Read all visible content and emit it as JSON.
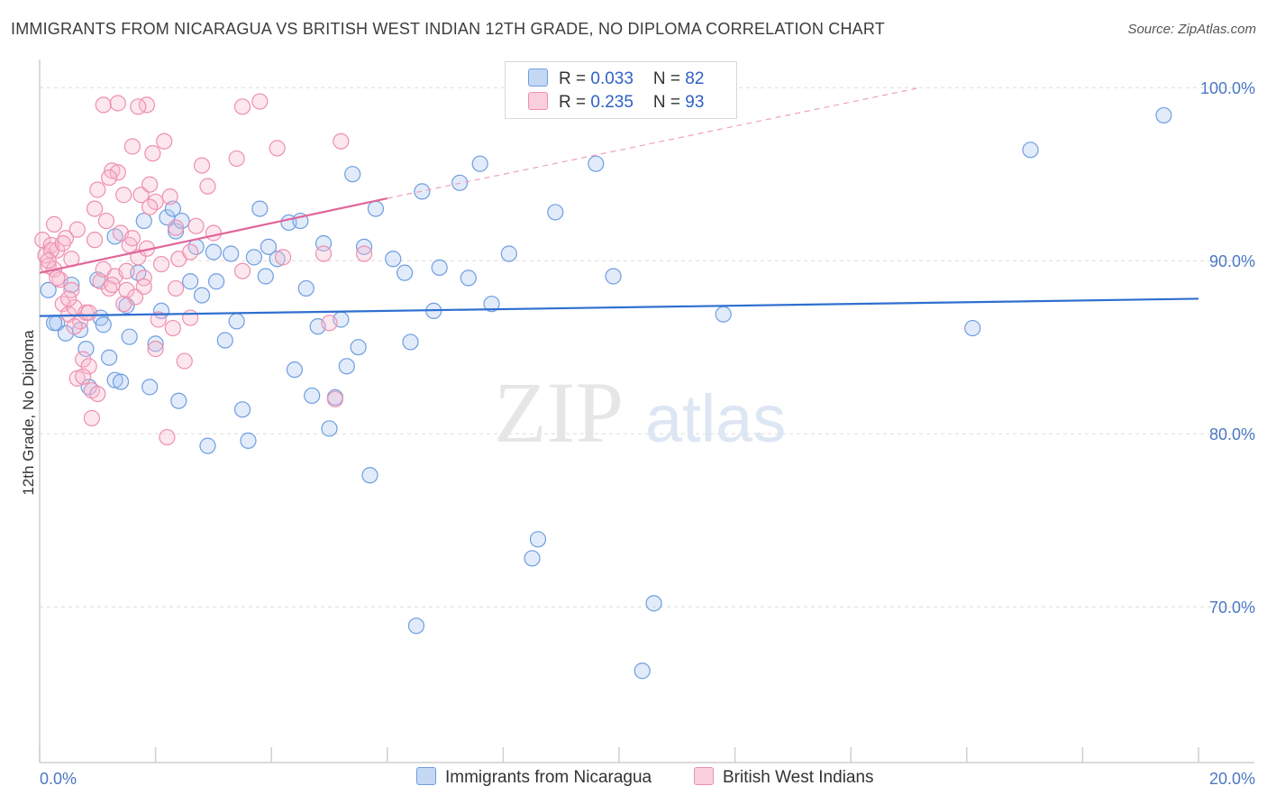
{
  "title": "IMMIGRANTS FROM NICARAGUA VS BRITISH WEST INDIAN 12TH GRADE, NO DIPLOMA CORRELATION CHART",
  "source": "Source: ZipAtlas.com",
  "watermark": {
    "zip": "ZIP",
    "atlas": "atlas"
  },
  "legend": {
    "series1": {
      "r_label": "R = ",
      "r_value": "0.033",
      "n_label": "N = ",
      "n_value": "82"
    },
    "series2": {
      "r_label": "R = ",
      "r_value": "0.235",
      "n_label": "N = ",
      "n_value": "93"
    }
  },
  "chart_data": {
    "type": "scatter",
    "title": "IMMIGRANTS FROM NICARAGUA VS BRITISH WEST INDIAN 12TH GRADE, NO DIPLOMA CORRELATION CHART",
    "xlabel": "",
    "ylabel": "12th Grade, No Diploma",
    "xlim": [
      0,
      20
    ],
    "ylim": [
      61,
      101
    ],
    "x_tick_labels": [
      "0.0%",
      "20.0%"
    ],
    "y_tick_labels": [
      "100.0%",
      "90.0%",
      "80.0%",
      "70.0%"
    ],
    "y_ticks": [
      100,
      90,
      80,
      70
    ],
    "grid": true,
    "legend_position": "top-center",
    "colors": {
      "blue": "#6f9ee0",
      "pink": "#ee8fb0",
      "blue_line": "#2f6fd0",
      "pink_line": "#e0669a"
    },
    "series": [
      {
        "name": "Immigrants from Nicaragua",
        "color": "#6f9ee0",
        "trend": {
          "x0": 0.0,
          "y0": 86.8,
          "x1": 20.0,
          "y1": 87.8
        },
        "points": [
          [
            0.15,
            88.3
          ],
          [
            0.3,
            86.4
          ],
          [
            0.45,
            85.8
          ],
          [
            0.55,
            88.6
          ],
          [
            0.7,
            86.0
          ],
          [
            0.8,
            84.9
          ],
          [
            0.85,
            82.7
          ],
          [
            1.0,
            88.9
          ],
          [
            1.05,
            86.7
          ],
          [
            1.1,
            86.3
          ],
          [
            1.2,
            84.4
          ],
          [
            1.3,
            83.1
          ],
          [
            1.4,
            83.0
          ],
          [
            1.5,
            87.4
          ],
          [
            1.55,
            85.6
          ],
          [
            1.7,
            89.3
          ],
          [
            1.8,
            92.3
          ],
          [
            1.9,
            82.7
          ],
          [
            2.0,
            85.2
          ],
          [
            2.1,
            87.1
          ],
          [
            2.2,
            92.5
          ],
          [
            2.3,
            93.0
          ],
          [
            2.35,
            91.7
          ],
          [
            2.45,
            92.3
          ],
          [
            2.6,
            88.8
          ],
          [
            2.7,
            90.8
          ],
          [
            2.8,
            88.0
          ],
          [
            2.9,
            79.3
          ],
          [
            3.0,
            90.5
          ],
          [
            3.05,
            88.8
          ],
          [
            3.2,
            85.4
          ],
          [
            3.3,
            90.4
          ],
          [
            3.4,
            86.5
          ],
          [
            3.5,
            81.4
          ],
          [
            3.6,
            79.6
          ],
          [
            3.7,
            90.2
          ],
          [
            3.8,
            93.0
          ],
          [
            3.9,
            89.1
          ],
          [
            3.95,
            90.8
          ],
          [
            4.1,
            90.1
          ],
          [
            4.3,
            92.2
          ],
          [
            4.4,
            83.7
          ],
          [
            4.5,
            92.3
          ],
          [
            4.6,
            88.4
          ],
          [
            4.7,
            82.2
          ],
          [
            4.8,
            86.2
          ],
          [
            4.9,
            91.0
          ],
          [
            5.0,
            80.3
          ],
          [
            5.1,
            82.1
          ],
          [
            5.2,
            86.6
          ],
          [
            5.3,
            83.9
          ],
          [
            5.4,
            95.0
          ],
          [
            5.5,
            85.0
          ],
          [
            5.6,
            90.8
          ],
          [
            5.7,
            77.6
          ],
          [
            5.8,
            93.0
          ],
          [
            6.1,
            90.1
          ],
          [
            6.3,
            89.3
          ],
          [
            6.4,
            85.3
          ],
          [
            6.5,
            68.9
          ],
          [
            6.6,
            94.0
          ],
          [
            6.8,
            87.1
          ],
          [
            6.9,
            89.6
          ],
          [
            7.25,
            94.5
          ],
          [
            7.4,
            89.0
          ],
          [
            7.6,
            95.6
          ],
          [
            7.8,
            87.5
          ],
          [
            8.1,
            90.4
          ],
          [
            8.5,
            72.8
          ],
          [
            8.6,
            73.9
          ],
          [
            8.9,
            92.8
          ],
          [
            9.6,
            95.6
          ],
          [
            9.9,
            89.1
          ],
          [
            10.4,
            66.3
          ],
          [
            10.6,
            70.2
          ],
          [
            11.8,
            86.9
          ],
          [
            16.1,
            86.1
          ],
          [
            17.1,
            96.4
          ],
          [
            19.4,
            98.4
          ],
          [
            0.25,
            86.4
          ],
          [
            1.3,
            91.4
          ],
          [
            2.4,
            81.9
          ]
        ]
      },
      {
        "name": "British West Indians",
        "color": "#ee8fb0",
        "trend": {
          "x0": 0.0,
          "y0": 89.3,
          "x1": 6.0,
          "y1": 93.6
        },
        "trend_extension": {
          "x0": 6.0,
          "y0": 93.6,
          "x1": 15.2,
          "y1": 100.0
        },
        "points": [
          [
            0.05,
            91.2
          ],
          [
            0.1,
            90.3
          ],
          [
            0.15,
            89.7
          ],
          [
            0.2,
            90.9
          ],
          [
            0.25,
            89.5
          ],
          [
            0.3,
            90.6
          ],
          [
            0.35,
            88.9
          ],
          [
            0.4,
            87.5
          ],
          [
            0.45,
            91.3
          ],
          [
            0.5,
            86.9
          ],
          [
            0.55,
            90.1
          ],
          [
            0.6,
            87.3
          ],
          [
            0.65,
            83.2
          ],
          [
            0.7,
            86.5
          ],
          [
            0.75,
            84.3
          ],
          [
            0.8,
            87.0
          ],
          [
            0.85,
            83.9
          ],
          [
            0.9,
            82.5
          ],
          [
            0.95,
            91.2
          ],
          [
            1.0,
            94.1
          ],
          [
            1.05,
            88.8
          ],
          [
            1.1,
            89.5
          ],
          [
            1.15,
            92.3
          ],
          [
            1.2,
            88.4
          ],
          [
            1.25,
            95.2
          ],
          [
            1.3,
            89.1
          ],
          [
            1.35,
            95.1
          ],
          [
            1.4,
            91.6
          ],
          [
            1.45,
            93.8
          ],
          [
            1.5,
            88.3
          ],
          [
            1.55,
            90.9
          ],
          [
            1.6,
            96.6
          ],
          [
            1.65,
            87.9
          ],
          [
            1.7,
            90.2
          ],
          [
            1.75,
            93.8
          ],
          [
            1.8,
            89.0
          ],
          [
            1.85,
            90.7
          ],
          [
            1.9,
            94.4
          ],
          [
            1.95,
            96.2
          ],
          [
            2.0,
            93.4
          ],
          [
            2.05,
            86.6
          ],
          [
            2.1,
            89.8
          ],
          [
            2.15,
            96.9
          ],
          [
            2.2,
            79.8
          ],
          [
            2.25,
            93.7
          ],
          [
            2.3,
            86.1
          ],
          [
            2.35,
            91.9
          ],
          [
            2.4,
            90.1
          ],
          [
            2.5,
            84.2
          ],
          [
            2.6,
            86.7
          ],
          [
            2.8,
            95.5
          ],
          [
            2.9,
            94.3
          ],
          [
            3.0,
            91.6
          ],
          [
            3.4,
            95.9
          ],
          [
            3.5,
            89.4
          ],
          [
            3.5,
            98.9
          ],
          [
            3.8,
            99.2
          ],
          [
            4.1,
            96.5
          ],
          [
            4.2,
            90.2
          ],
          [
            4.9,
            90.4
          ],
          [
            5.0,
            86.4
          ],
          [
            5.1,
            82.0
          ],
          [
            5.2,
            96.9
          ],
          [
            5.6,
            90.4
          ],
          [
            1.1,
            99.0
          ],
          [
            1.35,
            99.1
          ],
          [
            1.85,
            99.0
          ],
          [
            1.7,
            98.9
          ],
          [
            1.2,
            94.8
          ],
          [
            0.55,
            88.3
          ],
          [
            0.65,
            91.8
          ],
          [
            0.85,
            87.0
          ],
          [
            1.0,
            82.3
          ],
          [
            0.2,
            90.6
          ],
          [
            0.4,
            91.0
          ],
          [
            0.3,
            89.0
          ],
          [
            1.5,
            89.4
          ],
          [
            1.9,
            93.1
          ],
          [
            2.6,
            90.5
          ],
          [
            0.75,
            83.3
          ],
          [
            0.95,
            93.0
          ],
          [
            0.6,
            86.2
          ],
          [
            1.6,
            91.3
          ],
          [
            1.8,
            88.5
          ],
          [
            2.0,
            84.9
          ],
          [
            2.7,
            92.0
          ],
          [
            0.5,
            87.8
          ],
          [
            0.25,
            92.1
          ],
          [
            1.25,
            88.6
          ],
          [
            0.15,
            90.0
          ],
          [
            2.35,
            88.4
          ],
          [
            1.45,
            87.5
          ],
          [
            0.9,
            80.9
          ]
        ]
      }
    ]
  },
  "bottom_legend": {
    "series1": "Immigrants from Nicaragua",
    "series2": "British West Indians"
  }
}
